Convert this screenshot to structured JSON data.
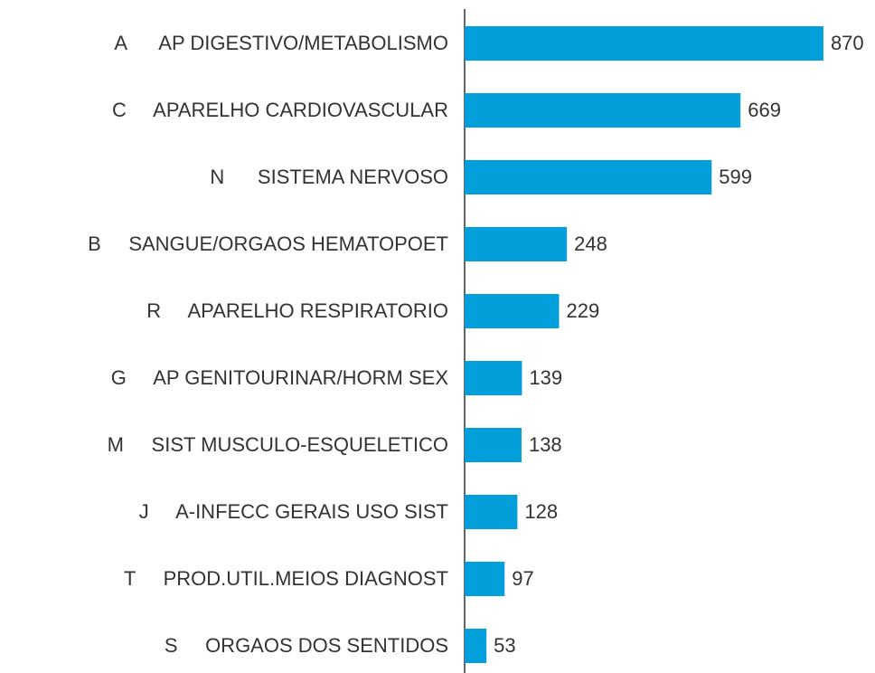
{
  "chart_data": {
    "type": "barh",
    "categories": [
      "A      AP DIGESTIVO/METABOLISMO",
      "C     APARELHO CARDIOVASCULAR",
      "N      SISTEMA NERVOSO",
      "B     SANGUE/ORGAOS HEMATOPOET",
      "R     APARELHO RESPIRATORIO",
      "G     AP GENITOURINAR/HORM SEX",
      "M     SIST MUSCULO-ESQUELETICO",
      "J     A-INFECC GERAIS USO SIST",
      "T     PROD.UTIL.MEIOS DIAGNOST",
      "S     ORGAOS DOS SENTIDOS"
    ],
    "values": [
      870,
      669,
      599,
      248,
      229,
      139,
      138,
      128,
      97,
      53
    ],
    "color": "#039fdb",
    "xlim": [
      0,
      960
    ]
  }
}
